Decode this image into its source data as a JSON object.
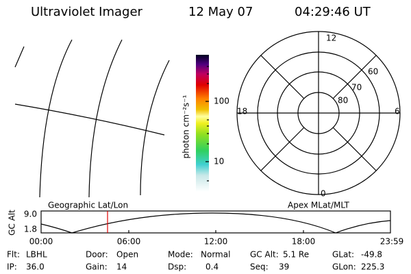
{
  "header": {
    "instrument": "Ultraviolet Imager",
    "date": "12 May 07",
    "time": "04:29:46 UT"
  },
  "colorbar": {
    "unit_label": "photon cm⁻²s⁻¹",
    "ticks": [
      "100",
      "10"
    ]
  },
  "polar": {
    "mlt_labels": [
      "12",
      "18",
      "6",
      "0"
    ],
    "mlat_labels": [
      "60",
      "70",
      "80"
    ]
  },
  "timeline": {
    "left_label": "Geographic Lat/Lon",
    "right_label": "Apex MLat/MLT",
    "y_axis_label": "GC Alt",
    "y_ticks": [
      "9.0",
      "1.8"
    ],
    "x_ticks": [
      "00:00",
      "06:00",
      "12:00",
      "18:00",
      "23:59"
    ]
  },
  "status": {
    "rows": [
      [
        {
          "label": "Flt:",
          "value": "LBHL"
        },
        {
          "label": "Door:",
          "value": "Open"
        },
        {
          "label": "Mode:",
          "value": "Normal"
        },
        {
          "label": "GC Alt:",
          "value": "5.1 Re"
        },
        {
          "label": "GLat:",
          "value": "-49.8"
        }
      ],
      [
        {
          "label": "IP:",
          "value": "36.0"
        },
        {
          "label": "Gain:",
          "value": "14"
        },
        {
          "label": "Dsp:",
          "value": "0.4"
        },
        {
          "label": "Seq:",
          "value": "39"
        },
        {
          "label": "GLon:",
          "value": "225.3"
        }
      ]
    ]
  }
}
